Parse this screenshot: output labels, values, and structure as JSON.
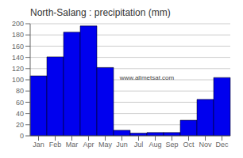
{
  "chart_data": {
    "type": "bar",
    "title": "North-Salang : precipitation (mm)",
    "categories": [
      "Jan",
      "Feb",
      "Mar",
      "Apr",
      "May",
      "Jun",
      "Jul",
      "Aug",
      "Sep",
      "Oct",
      "Nov",
      "Dec"
    ],
    "values": [
      107,
      141,
      185,
      196,
      122,
      10,
      5,
      6,
      6,
      28,
      65,
      104
    ],
    "color": "#0000EE",
    "ylim": [
      0,
      200
    ],
    "yticks": [
      0,
      20,
      40,
      60,
      80,
      100,
      120,
      140,
      160,
      180,
      200
    ],
    "grid": true,
    "annotations": [
      "www.allmetsat.com"
    ]
  }
}
